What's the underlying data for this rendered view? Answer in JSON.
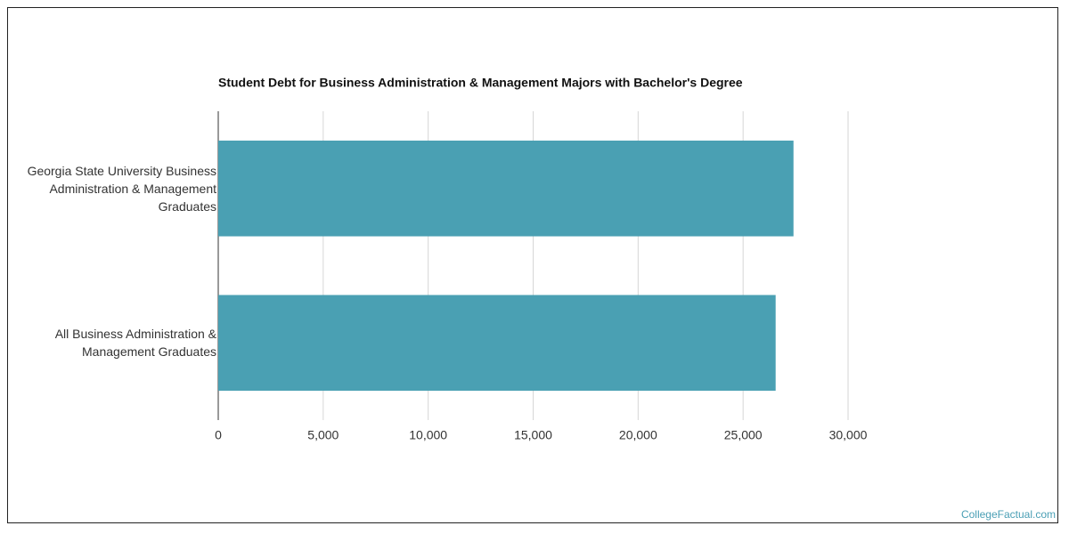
{
  "chart_data": {
    "type": "hbar",
    "title": "Student Debt for Business Administration & Management Majors with Bachelor's Degree",
    "categories": [
      "Georgia State University Business Administration & Management Graduates",
      "All Business Administration & Management Graduates"
    ],
    "values": [
      27400,
      26550
    ],
    "color": "#4aa0b3",
    "xlim": [
      0,
      30000
    ],
    "xticks": [
      0,
      {
        "value": 5000,
        "label": "5,000"
      },
      {
        "value": 10000,
        "label": "10,000"
      },
      {
        "value": 15000,
        "label": "15,000"
      },
      {
        "value": 20000,
        "label": "20,000"
      },
      {
        "value": 25000,
        "label": "25,000"
      },
      {
        "value": 30000,
        "label": "30,000"
      }
    ],
    "grid": true
  },
  "source": "CollegeFactual.com"
}
